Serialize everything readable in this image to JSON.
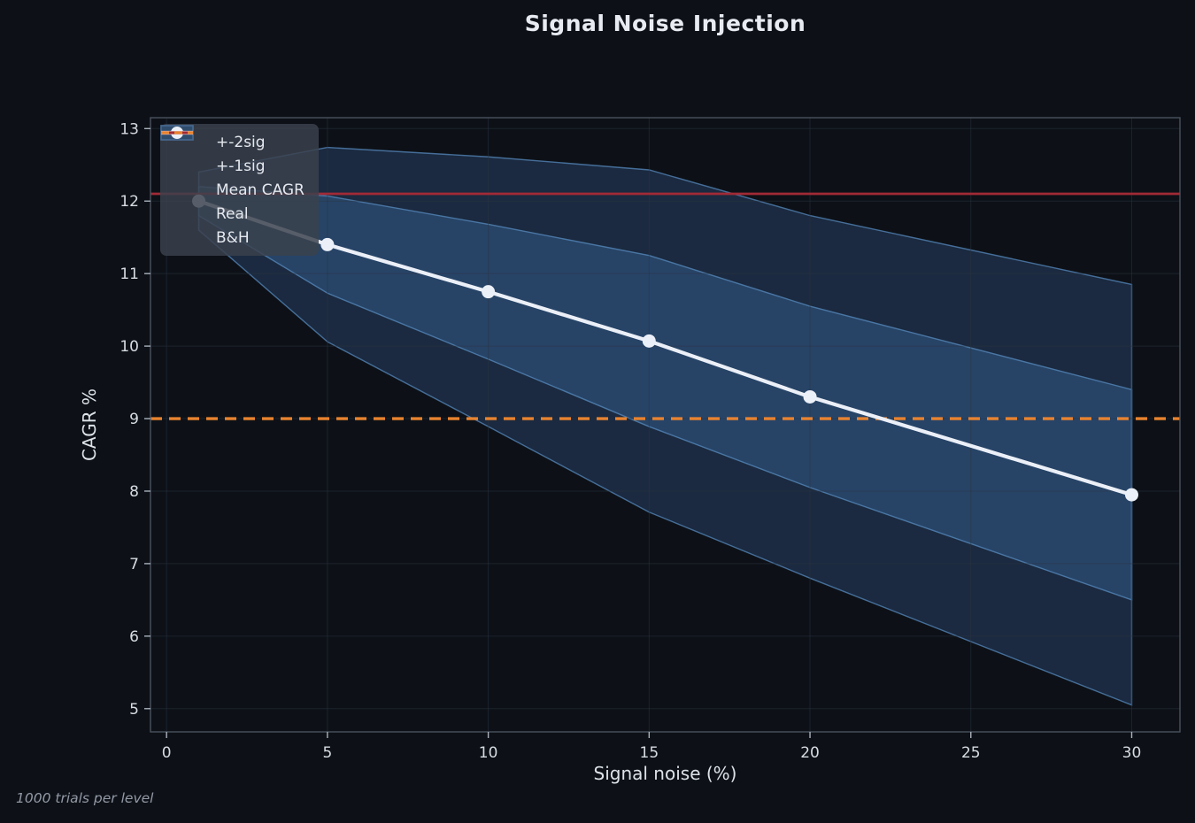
{
  "chart_data": {
    "type": "line",
    "title": "Signal Noise Injection",
    "xlabel": "Signal noise (%)",
    "ylabel": "CAGR %",
    "footnote": "1000 trials per level",
    "x": [
      1,
      5,
      10,
      15,
      20,
      30
    ],
    "series": [
      {
        "name": "Mean CAGR",
        "values": [
          12.0,
          11.4,
          10.75,
          10.07,
          9.3,
          7.95
        ]
      }
    ],
    "bands": {
      "sigma": [
        0.2,
        0.67,
        0.93,
        1.18,
        1.25,
        1.45
      ],
      "plus_1sig": [
        12.2,
        12.07,
        11.68,
        11.25,
        10.55,
        9.4
      ],
      "minus_1sig": [
        11.8,
        10.73,
        9.82,
        8.89,
        8.05,
        6.5
      ],
      "plus_2sig": [
        12.4,
        12.74,
        12.61,
        12.43,
        11.8,
        10.85
      ],
      "minus_2sig": [
        11.6,
        10.06,
        8.89,
        7.71,
        6.8,
        5.05
      ]
    },
    "reference_lines": [
      {
        "name": "Real",
        "value": 12.1,
        "style": "solid",
        "color": "#a12a36"
      },
      {
        "name": "B&H",
        "value": 9.0,
        "style": "dashed",
        "color": "#e8832f"
      }
    ],
    "x_ticks": [
      "0",
      "5",
      "10",
      "15",
      "20",
      "25",
      "30"
    ],
    "x_tick_values": [
      0,
      5,
      10,
      15,
      20,
      25,
      30
    ],
    "y_ticks": [
      "5",
      "6",
      "7",
      "8",
      "9",
      "10",
      "11",
      "12",
      "13"
    ],
    "y_tick_values": [
      5,
      6,
      7,
      8,
      9,
      10,
      11,
      12,
      13
    ],
    "xlim": [
      -0.5,
      31.5
    ],
    "ylim": [
      4.68,
      13.15
    ],
    "grid": true,
    "legend": {
      "position": "upper left",
      "items": [
        {
          "label": "+-2sig",
          "swatch": "band",
          "fill": "#23354a",
          "border": "#3a506b"
        },
        {
          "label": "+-1sig",
          "swatch": "band",
          "fill": "#304c6d",
          "border": "#47688f"
        },
        {
          "label": "Mean CAGR",
          "swatch": "marker-line",
          "color": "#ebeff7"
        },
        {
          "label": "Real",
          "swatch": "line",
          "color": "#a12a36"
        },
        {
          "label": "B&H",
          "swatch": "dashed-line",
          "color": "#e8832f"
        }
      ]
    }
  },
  "colors": {
    "background": "#0d1117",
    "band_fill": "#3a689e",
    "band_edge": "#4f7dad",
    "mean_line": "#ebeff7",
    "real_line": "#a12a36",
    "bh_line": "#e8832f",
    "grid": "#2b3442",
    "spine": "#4a525e",
    "tick": "#aab2bd",
    "tick_label": "#d7dce3",
    "title": "#e8ecf2",
    "axis_label": "#dde2e9",
    "footnote": "#9299a5",
    "legend_text": "#e5e9ef"
  }
}
